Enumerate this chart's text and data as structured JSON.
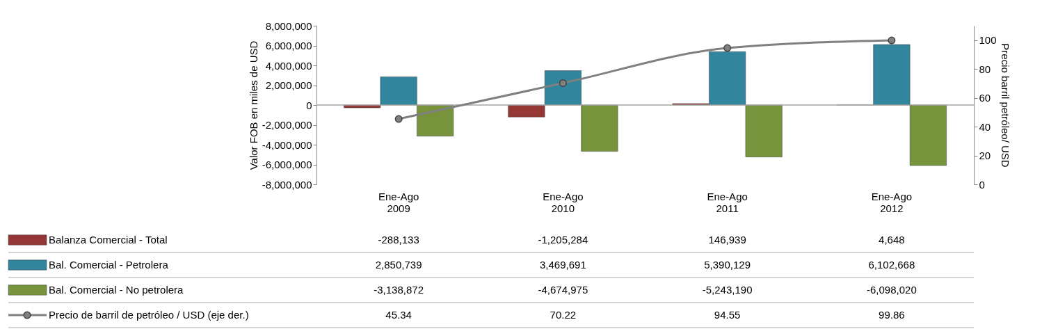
{
  "chart_data": {
    "type": "bar",
    "categories": [
      "Ene-Ago 2009",
      "Ene-Ago 2010",
      "Ene-Ago 2011",
      "Ene-Ago 2012"
    ],
    "ylabel": "Valor FOB en miles de USD",
    "y2label": "Precio barril petróleo/ USD",
    "ylim": [
      -8000000,
      8000000
    ],
    "yticks": [
      {
        "value": -8000000,
        "label": "-8,000,000"
      },
      {
        "value": -6000000,
        "label": "-6,000,000"
      },
      {
        "value": -4000000,
        "label": "-4,000,000"
      },
      {
        "value": -2000000,
        "label": "-2,000,000"
      },
      0,
      {
        "value": 2000000,
        "label": "2,000,000"
      },
      {
        "value": 4000000,
        "label": "4,000,000"
      },
      {
        "value": 6000000,
        "label": "6,000,000"
      },
      {
        "value": 8000000,
        "label": "8,000,000"
      }
    ],
    "y2lim": [
      0,
      110
    ],
    "y2ticks": [
      0,
      20,
      40,
      60,
      80,
      100
    ],
    "series": [
      {
        "name": "Balanza Comercial - Total",
        "color": "#953735",
        "values": [
          -288133,
          -1205284,
          146939,
          4648
        ],
        "value_labels": [
          "-288,133",
          "-1,205,284",
          "146,939",
          "4,648"
        ]
      },
      {
        "name": "Bal. Comercial - Petrolera",
        "color": "#31859c",
        "values": [
          2850739,
          3469691,
          5390129,
          6102668
        ],
        "value_labels": [
          "2,850,739",
          "3,469,691",
          "5,390,129",
          "6,102,668"
        ]
      },
      {
        "name": "Bal. Comercial - No petrolera",
        "color": "#77933c",
        "values": [
          -3138872,
          -4674975,
          -5243190,
          -6098020
        ],
        "value_labels": [
          "-3,138,872",
          "-4,674,975",
          "-5,243,190",
          "-6,098,020"
        ]
      },
      {
        "name": "Precio de barril de petróleo / USD (eje der.)",
        "color": "#808080",
        "type": "line",
        "axis": "y2",
        "marker": "circle",
        "values": [
          45.34,
          70.22,
          94.55,
          99.86
        ],
        "value_labels": [
          "45.34",
          "70.22",
          "94.55",
          "99.86"
        ]
      }
    ],
    "ref_lines": [
      {
        "axis": "y",
        "value": 0,
        "color": "#a6a6a6"
      }
    ],
    "legend": "bottom"
  }
}
